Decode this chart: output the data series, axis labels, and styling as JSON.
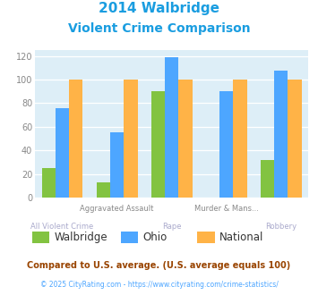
{
  "title_line1": "2014 Walbridge",
  "title_line2": "Violent Crime Comparison",
  "title_color": "#1a9de0",
  "categories": [
    "All Violent Crime",
    "Aggravated Assault",
    "Rape",
    "Murder & Mans...",
    "Robbery"
  ],
  "top_labels": [
    "",
    "Aggravated Assault",
    "",
    "Murder & Mans...",
    ""
  ],
  "bot_labels": [
    "All Violent Crime",
    "",
    "Rape",
    "",
    "Robbery"
  ],
  "walbridge": [
    25,
    13,
    90,
    0,
    32
  ],
  "ohio": [
    76,
    55,
    119,
    90,
    108
  ],
  "national": [
    100,
    100,
    100,
    100,
    100
  ],
  "walbridge_color": "#82c341",
  "ohio_color": "#4da6ff",
  "national_color": "#ffb347",
  "ylim": [
    0,
    125
  ],
  "yticks": [
    0,
    20,
    40,
    60,
    80,
    100,
    120
  ],
  "bg_color": "#ddeef7",
  "fig_bg_color": "#ffffff",
  "footnote1": "Compared to U.S. average. (U.S. average equals 100)",
  "footnote2": "© 2025 CityRating.com - https://www.cityrating.com/crime-statistics/",
  "footnote1_color": "#994400",
  "footnote2_color": "#4da6ff",
  "legend_labels": [
    "Walbridge",
    "Ohio",
    "National"
  ],
  "bar_width": 0.25
}
